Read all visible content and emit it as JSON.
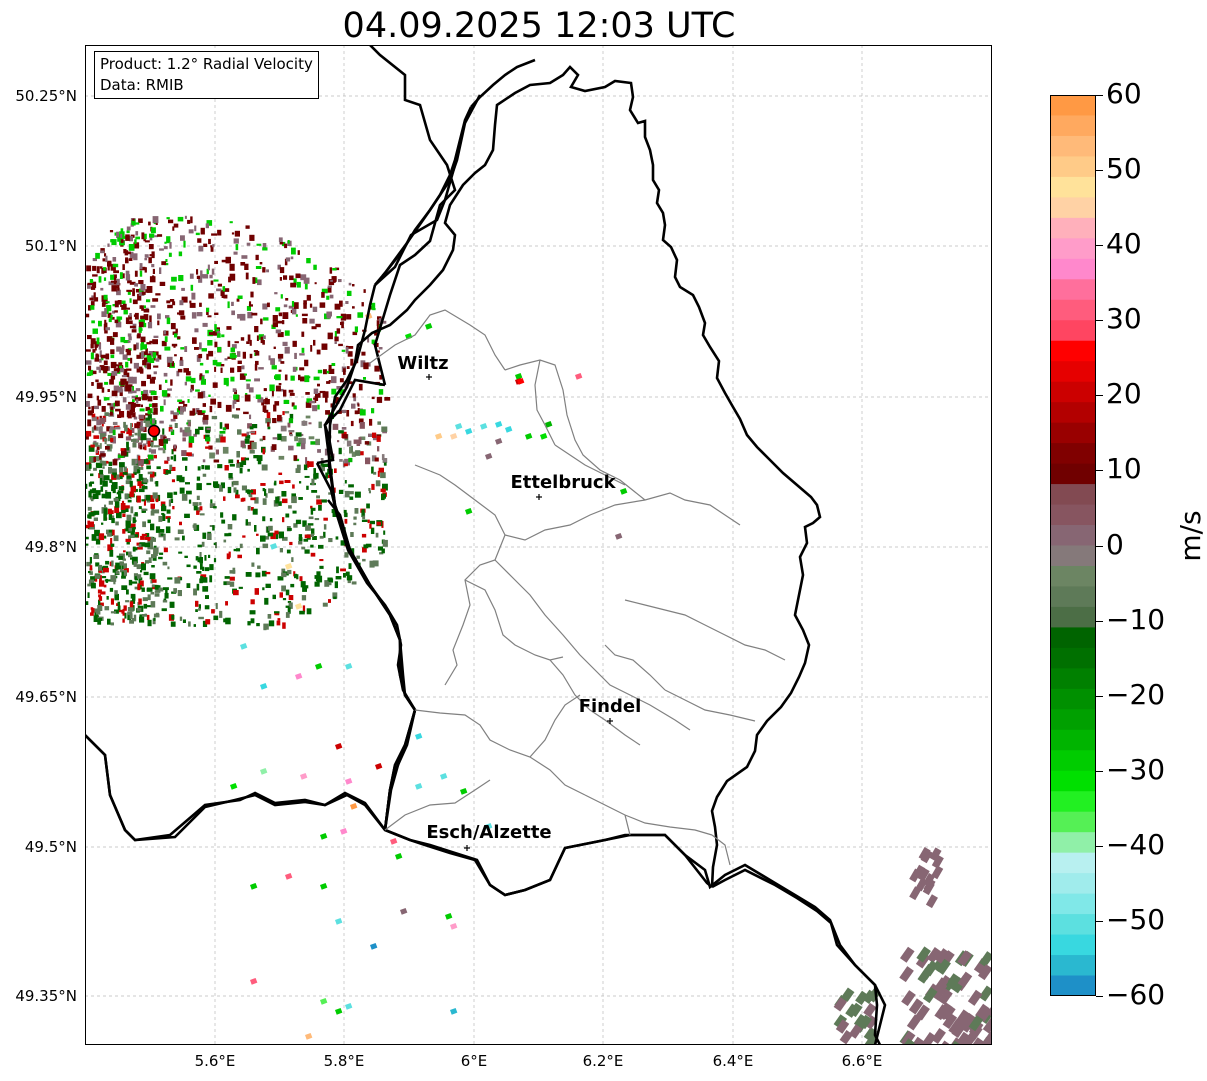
{
  "title": "04.09.2025 12:03 UTC",
  "info_box": {
    "product": "Product: 1.2° Radial Velocity",
    "source": "Data: RMIB"
  },
  "y_axis_labels": [
    "50.25°N",
    "50.1°N",
    "49.95°N",
    "49.8°N",
    "49.65°N",
    "49.5°N",
    "49.35°N"
  ],
  "x_axis_labels": [
    "5.6°E",
    "5.8°E",
    "6°E",
    "6.2°E",
    "6.4°E",
    "6.6°E"
  ],
  "cities": [
    {
      "name": "Wiltz"
    },
    {
      "name": "Ettelbruck"
    },
    {
      "name": "Findel"
    },
    {
      "name": "Esch/Alzette"
    }
  ],
  "radar_site": {
    "color": "#ff0000"
  },
  "colorbar": {
    "unit": "m/s",
    "ticks": [
      "60",
      "50",
      "40",
      "30",
      "20",
      "10",
      "0",
      "−10",
      "−20",
      "−30",
      "−40",
      "−50",
      "−60"
    ],
    "range": [
      -60,
      60
    ],
    "colors_top_to_bottom": [
      "#ff9944",
      "#ffa95f",
      "#ffba79",
      "#ffcb88",
      "#ffe29a",
      "#ffd2a5",
      "#ffb0bb",
      "#ff9cc9",
      "#ff88cc",
      "#ff6f9c",
      "#ff5c7d",
      "#ff4561",
      "#ff0000",
      "#e60000",
      "#cc0000",
      "#b30000",
      "#990000",
      "#800000",
      "#700000",
      "#824a52",
      "#875560",
      "#876673",
      "#85797a",
      "#6c8563",
      "#5e7a58",
      "#4c6e46",
      "#006400",
      "#007000",
      "#008000",
      "#009000",
      "#00a000",
      "#00b400",
      "#00cc00",
      "#00e000",
      "#22f022",
      "#55f055",
      "#90f0a8",
      "#b8f0f0",
      "#a0ecec",
      "#80e8e8",
      "#5ce0e0",
      "#38d8e0",
      "#2ab8d0",
      "#1e90c8"
    ],
    "accent": "#000000"
  }
}
